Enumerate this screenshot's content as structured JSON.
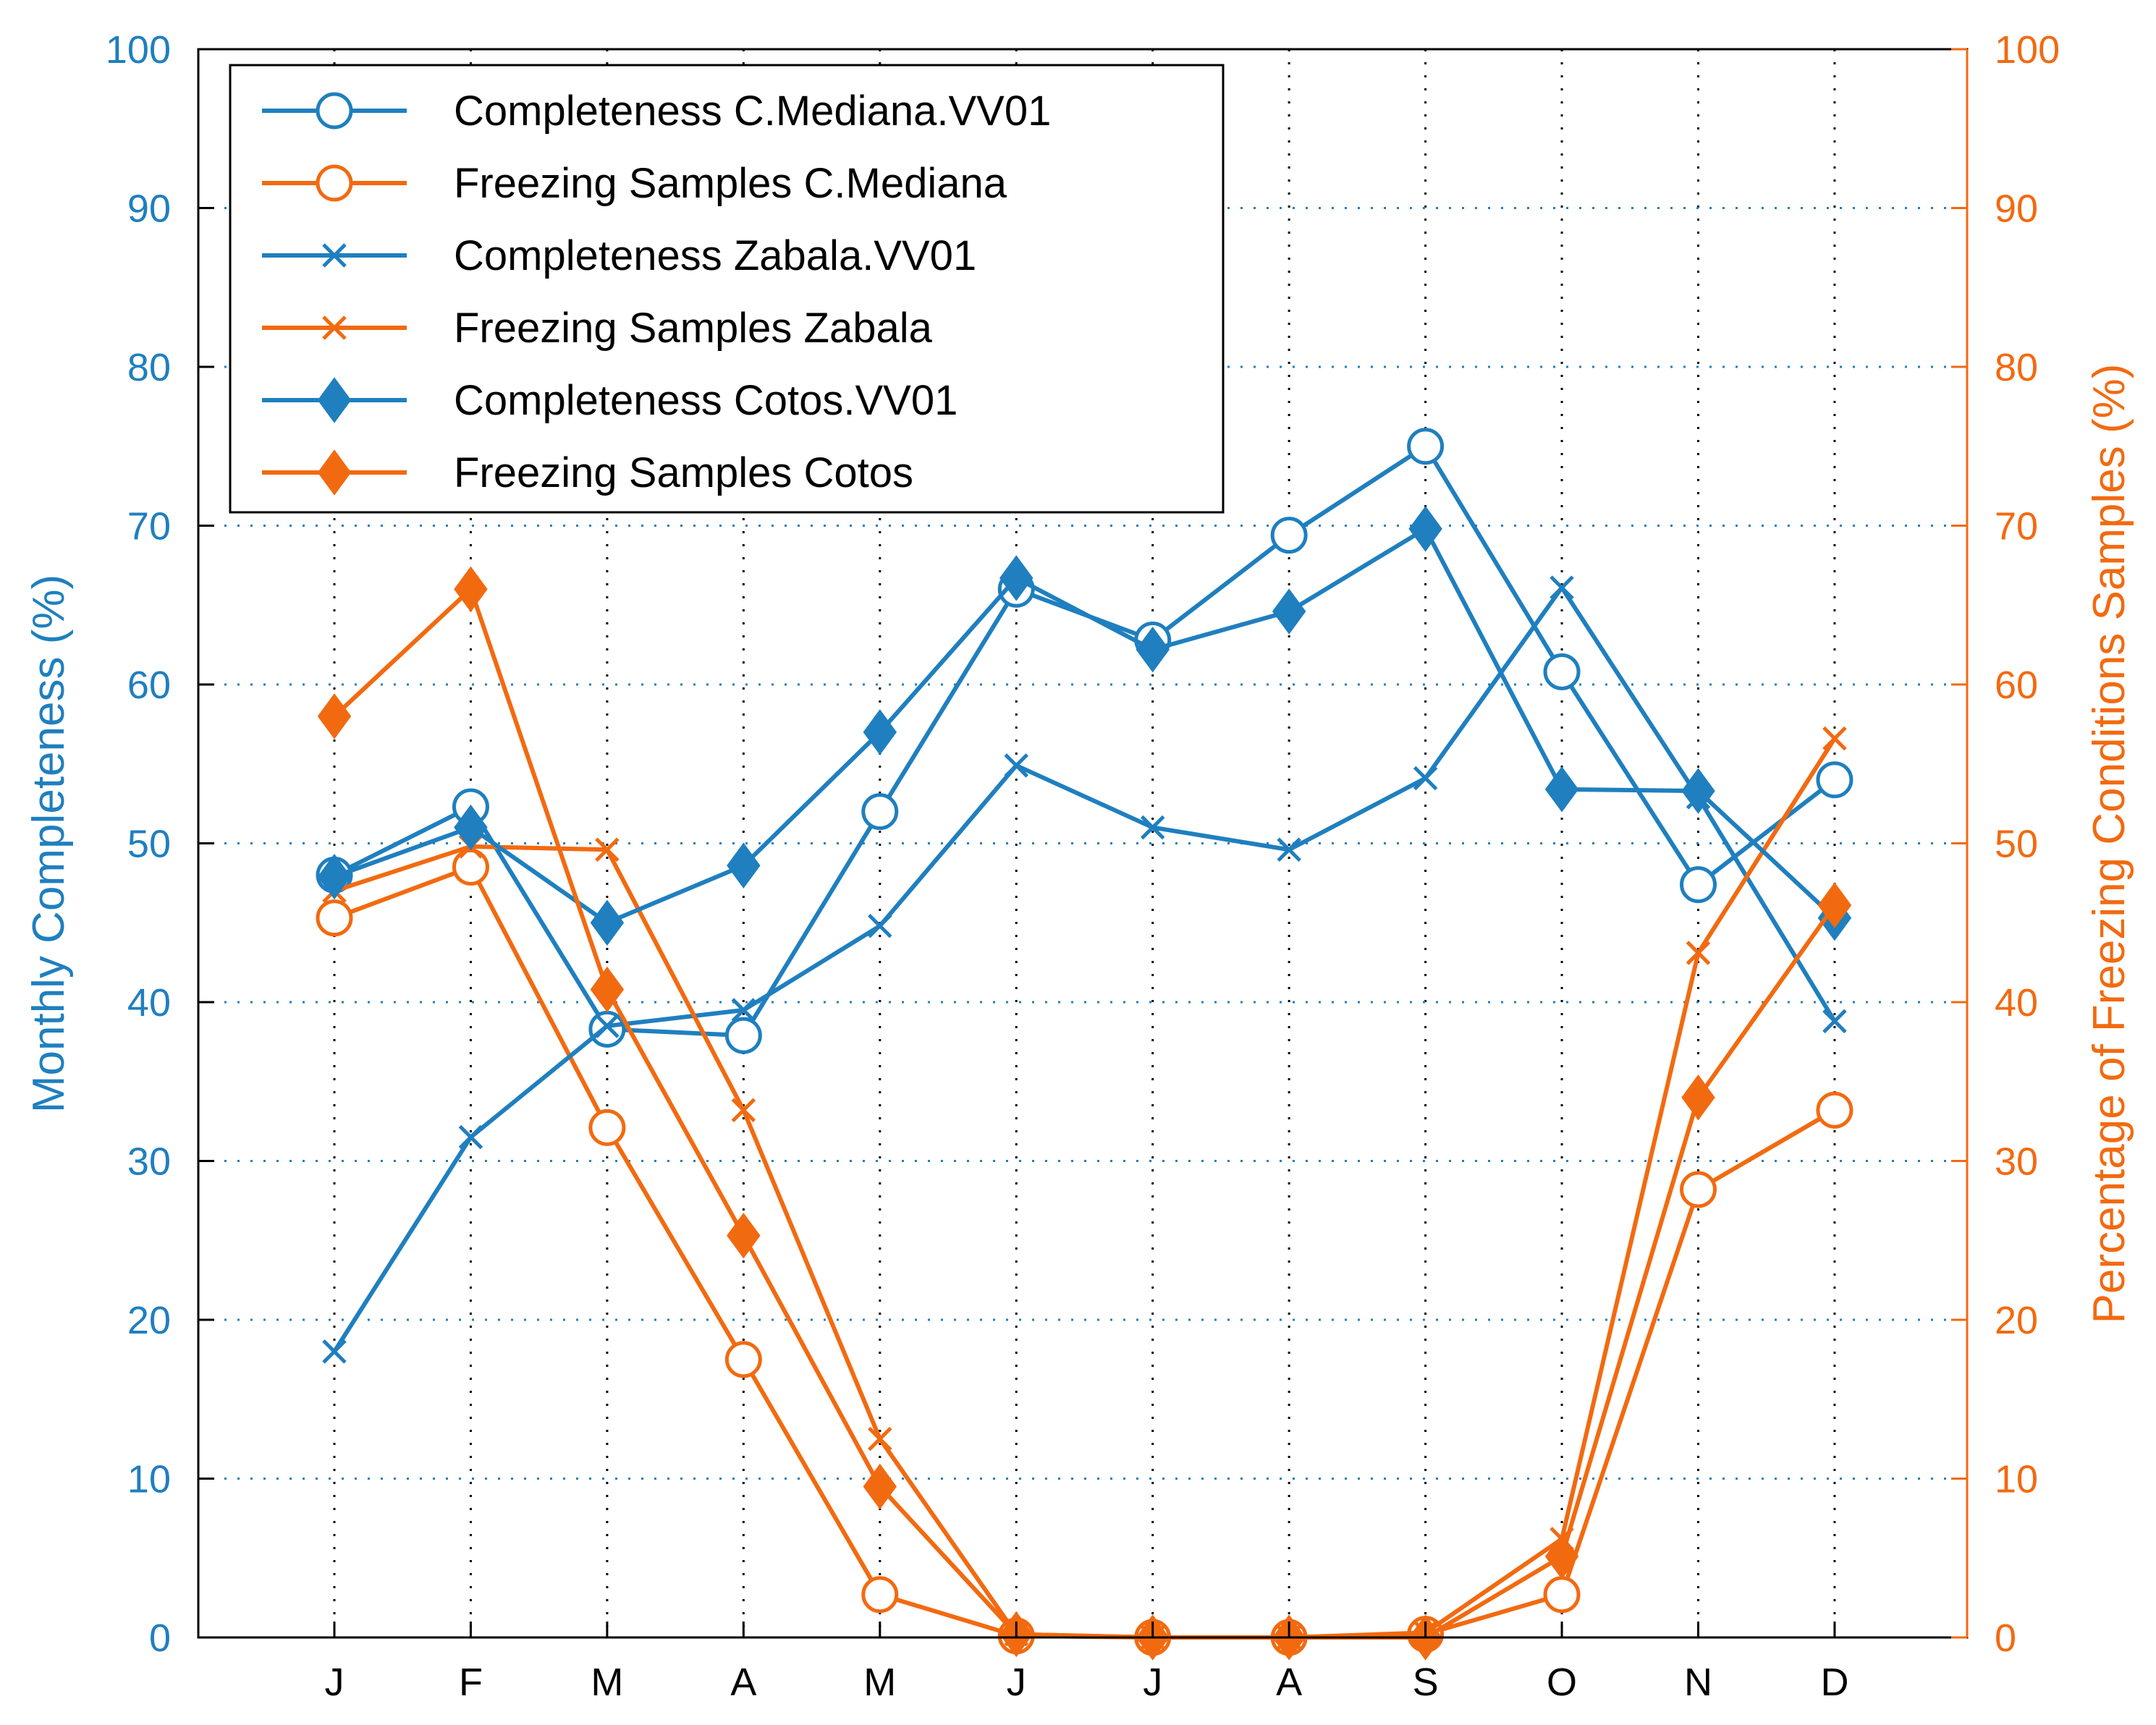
{
  "chart_data": {
    "type": "line",
    "title": "",
    "categories": [
      "J",
      "F",
      "M",
      "A",
      "M",
      "J",
      "J",
      "A",
      "S",
      "O",
      "N",
      "D"
    ],
    "xlabel": "",
    "ylabel_left": "Monthly Completeness (%)",
    "ylabel_right": "Percentage of Freezing Conditions Samples (%)",
    "ylim_left": [
      0,
      100
    ],
    "ylim_right": [
      0,
      100
    ],
    "yticks_left": [
      "0",
      "10",
      "20",
      "30",
      "40",
      "50",
      "60",
      "70",
      "80",
      "90",
      "100"
    ],
    "yticks_right": [
      "0",
      "10",
      "20",
      "30",
      "40",
      "50",
      "60",
      "70",
      "80",
      "90",
      "100"
    ],
    "grid": true,
    "legend_position": "top-left",
    "colors": {
      "completeness": "#1f7fbf",
      "freezing": "#f26a10"
    },
    "series": [
      {
        "name": "Completeness C.Mediana.VV01",
        "axis": "left",
        "color": "#1f7fbf",
        "marker": "circle",
        "values": [
          48,
          52.3,
          38.3,
          37.9,
          52,
          66,
          62.8,
          69.4,
          75,
          60.8,
          47.4,
          54
        ]
      },
      {
        "name": "Freezing Samples C.Mediana",
        "axis": "right",
        "color": "#f26a10",
        "marker": "circle",
        "values": [
          45.3,
          48.5,
          32.1,
          17.5,
          2.7,
          0.1,
          0,
          0,
          0.2,
          2.7,
          28.2,
          33.2
        ]
      },
      {
        "name": "Completeness Zabala.VV01",
        "axis": "left",
        "color": "#1f7fbf",
        "marker": "x",
        "values": [
          18,
          31.5,
          38.5,
          39.5,
          44.8,
          54.9,
          51,
          49.6,
          54.1,
          66.1,
          52.9,
          38.8
        ]
      },
      {
        "name": "Freezing Samples Zabala",
        "axis": "right",
        "color": "#f26a10",
        "marker": "x",
        "values": [
          47,
          49.8,
          49.6,
          33.2,
          12.5,
          0.2,
          0,
          0,
          0.3,
          6.2,
          43.1,
          56.6
        ]
      },
      {
        "name": "Completeness Cotos.VV01",
        "axis": "left",
        "color": "#1f7fbf",
        "marker": "diamond",
        "values": [
          47.9,
          51,
          45,
          48.6,
          57,
          66.7,
          62.2,
          64.6,
          69.8,
          53.4,
          53.3,
          45.3
        ]
      },
      {
        "name": "Freezing Samples Cotos",
        "axis": "right",
        "color": "#f26a10",
        "marker": "diamond",
        "values": [
          58,
          66,
          40.8,
          25.3,
          9.5,
          0.2,
          0,
          0,
          0,
          5.1,
          34,
          46.1
        ]
      }
    ]
  }
}
